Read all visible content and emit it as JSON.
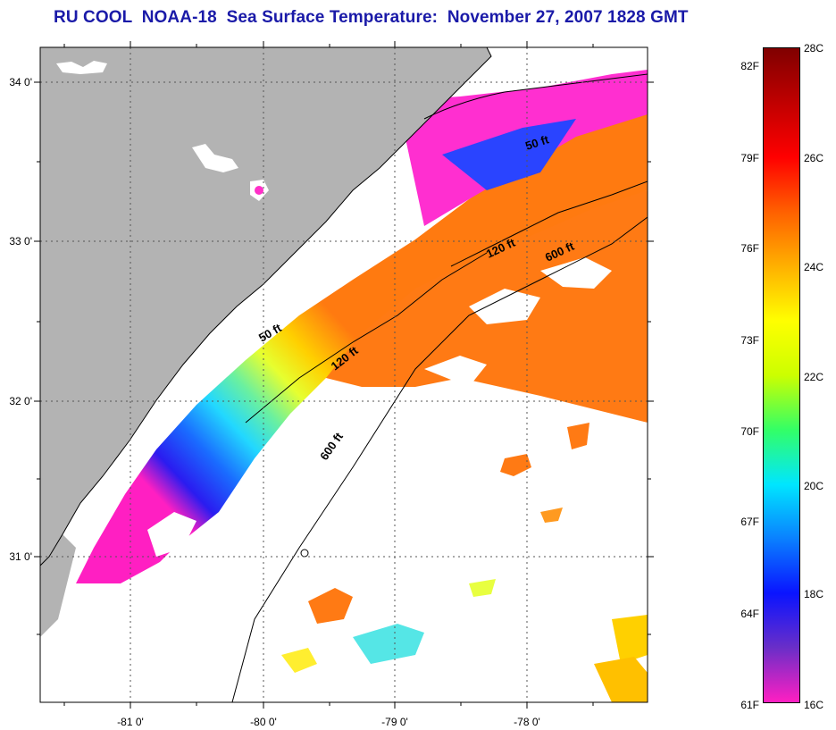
{
  "title": "RU COOL  NOAA-18  Sea Surface Temperature:  November 27, 2007 1828 GMT",
  "map": {
    "lat_labels": [
      "34 0'",
      "33 0'",
      "32 0'",
      "31 0'"
    ],
    "lon_labels": [
      "-81 0'",
      "-80 0'",
      "-79 0'",
      "-78 0'"
    ],
    "contour_labels": [
      "50 ft",
      "50 ft",
      "120 ft",
      "120 ft",
      "600 ft",
      "600 ft"
    ],
    "colors": {
      "land": "#b3b3b3",
      "cloud": "#ffffff",
      "coast_line": "#000000"
    }
  },
  "colorbar": {
    "fahrenheit_labels": [
      "82F",
      "79F",
      "76F",
      "73F",
      "70F",
      "67F",
      "64F",
      "61F"
    ],
    "celsius_labels": [
      "28C",
      "26C",
      "24C",
      "22C",
      "20C",
      "18C",
      "16C"
    ],
    "range_c": [
      16,
      28
    ],
    "palette": [
      "#ff1fc2",
      "#6a2ec8",
      "#0a14ff",
      "#0a80ff",
      "#00e6ff",
      "#33ff66",
      "#ccff00",
      "#ffff00",
      "#ffb000",
      "#ff6000",
      "#ff0000",
      "#c00000",
      "#800000"
    ]
  }
}
